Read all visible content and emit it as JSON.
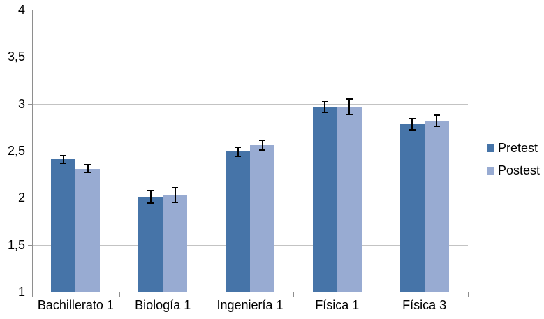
{
  "chart_data": {
    "type": "bar",
    "title": "",
    "xlabel": "",
    "ylabel": "",
    "categories": [
      "Bachillerato 1",
      "Biología 1",
      "Ingeniería 1",
      "Física 1",
      "Física 3"
    ],
    "series": [
      {
        "name": "Pretest",
        "color": "#4674A8",
        "values": [
          2.41,
          2.01,
          2.49,
          2.97,
          2.78
        ],
        "errors": [
          0.04,
          0.07,
          0.05,
          0.06,
          0.06
        ]
      },
      {
        "name": "Postest",
        "color": "#98ABD2",
        "values": [
          2.31,
          2.03,
          2.56,
          2.97,
          2.82
        ],
        "errors": [
          0.04,
          0.08,
          0.05,
          0.08,
          0.06
        ]
      }
    ],
    "ylim": [
      1,
      4
    ],
    "yticks": [
      {
        "value": 1,
        "label": "1"
      },
      {
        "value": 1.5,
        "label": "1,5"
      },
      {
        "value": 2,
        "label": "2"
      },
      {
        "value": 2.5,
        "label": "2,5"
      },
      {
        "value": 3,
        "label": "3"
      },
      {
        "value": 3.5,
        "label": "3,5"
      },
      {
        "value": 4,
        "label": "4"
      }
    ],
    "grid": true,
    "error_bars": true,
    "legend_position": "right",
    "colors": {
      "gridline": "#C3C3C3",
      "top_gridline": "#9B9B9B",
      "axis": "#8E8E8E",
      "error_bar": "#000000",
      "background": "#FFFFFF"
    }
  }
}
